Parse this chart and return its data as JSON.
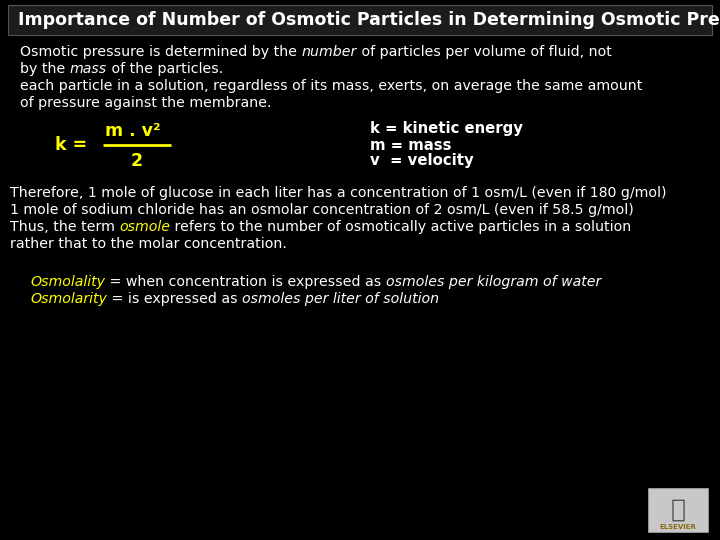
{
  "background_color": "#000000",
  "title_text": "Importance of Number of Osmotic Particles in Determining Osmotic Pressure",
  "title_color": "#ffffff",
  "title_fontsize": 12.5,
  "body_color": "#ffffff",
  "yellow_color": "#ffff00",
  "body_fontsize": 10.2,
  "formula_fontsize": 12.5,
  "para1_line1a": "Osmotic pressure is determined by the ",
  "para1_italic1": "number",
  "para1_line1b": " of particles per volume of fluid, not",
  "para1_line2a": "by the ",
  "para1_italic2": "mass",
  "para1_line2b": " of the particles.",
  "para1_line3": "each particle in a solution, regardless of its mass, exerts, on average the same amount",
  "para1_line4": "of pressure against the membrane.",
  "formula_numerator": "m . v²",
  "formula_denominator": "2",
  "def_k": "k = kinetic energy",
  "def_m": "m = mass",
  "def_v": "v  = velocity",
  "para2_line1": "Therefore, 1 mole of glucose in each liter has a concentration of 1 osm/L (even if 180 g/mol)",
  "para2_line2": "1 mole of sodium chloride has an osmolar concentration of 2 osm/L (even if 58.5 g/mol)",
  "para2_line3a": "Thus, the term ",
  "para2_osmole": "osmole",
  "para2_line3b": " refers to the number of osmotically active particles in a solution",
  "para2_line4": "rather that to the molar concentration.",
  "osmo_line1a": "Osmolality",
  "osmo_line1b": " = when concentration is expressed as ",
  "osmo_line1c": "osmoles per kilogram of water",
  "osmo_line2a": "Osmolarity",
  "osmo_line2b": " = is expressed as ",
  "osmo_line2c": "osmoles per liter of solution"
}
